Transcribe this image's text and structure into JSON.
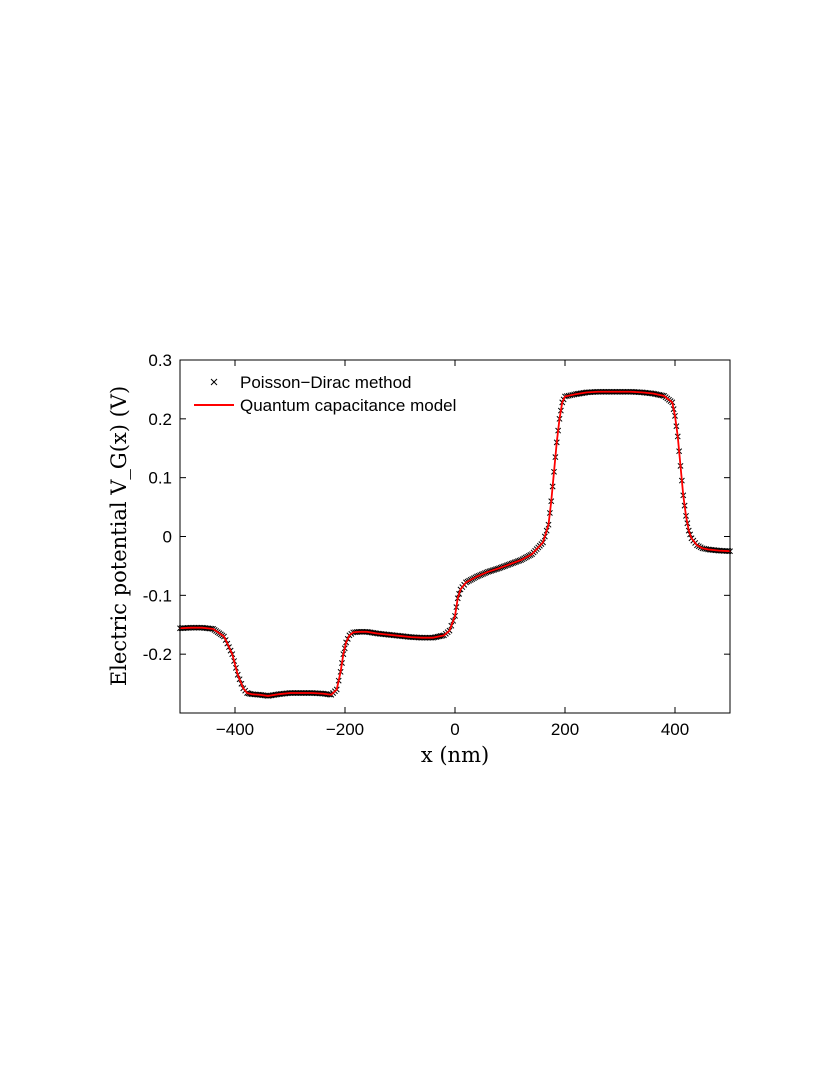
{
  "chart_data": {
    "type": "line",
    "title": "",
    "xlabel": "x (nm)",
    "ylabel": "Electric potential V_G(x) (V)",
    "xlim": [
      -500,
      500
    ],
    "ylim": [
      -0.3,
      0.3
    ],
    "xticks": [
      -400,
      -200,
      0,
      200,
      400
    ],
    "yticks": [
      -0.2,
      -0.1,
      0,
      0.1,
      0.2,
      0.3
    ],
    "xtick_labels": [
      "−400",
      "−200",
      "0",
      "200",
      "400"
    ],
    "ytick_labels": [
      "-0.2",
      "-0.1",
      "0",
      "0.1",
      "0.2",
      "0.3"
    ],
    "grid": false,
    "legend_position": "top-left",
    "series": [
      {
        "name": "Poisson−Dirac method",
        "style": "markers",
        "marker": "x",
        "color": "#000000",
        "x": [
          -500,
          -480,
          -460,
          -440,
          -420,
          -405,
          -395,
          -385,
          -378,
          -370,
          -355,
          -340,
          -320,
          -300,
          -280,
          -260,
          -240,
          -225,
          -215,
          -208,
          -203,
          -198,
          -192,
          -185,
          -175,
          -160,
          -140,
          -120,
          -100,
          -80,
          -60,
          -40,
          -20,
          -10,
          0,
          5,
          10,
          20,
          40,
          60,
          80,
          100,
          120,
          140,
          160,
          170,
          175,
          180,
          185,
          190,
          195,
          200,
          210,
          220,
          240,
          260,
          280,
          300,
          320,
          340,
          360,
          380,
          395,
          400,
          405,
          410,
          415,
          420,
          425,
          430,
          440,
          450,
          460,
          480,
          500
        ],
        "y": [
          -0.156,
          -0.155,
          -0.155,
          -0.157,
          -0.17,
          -0.2,
          -0.235,
          -0.258,
          -0.266,
          -0.268,
          -0.269,
          -0.271,
          -0.268,
          -0.266,
          -0.266,
          -0.266,
          -0.267,
          -0.269,
          -0.26,
          -0.23,
          -0.2,
          -0.18,
          -0.168,
          -0.163,
          -0.162,
          -0.162,
          -0.165,
          -0.167,
          -0.169,
          -0.171,
          -0.172,
          -0.172,
          -0.168,
          -0.16,
          -0.135,
          -0.105,
          -0.09,
          -0.078,
          -0.068,
          -0.06,
          -0.054,
          -0.047,
          -0.04,
          -0.03,
          -0.01,
          0.02,
          0.06,
          0.11,
          0.16,
          0.2,
          0.228,
          0.238,
          0.24,
          0.242,
          0.245,
          0.246,
          0.246,
          0.246,
          0.246,
          0.245,
          0.243,
          0.239,
          0.228,
          0.205,
          0.17,
          0.12,
          0.07,
          0.035,
          0.01,
          -0.003,
          -0.015,
          -0.02,
          -0.022,
          -0.024,
          -0.025
        ]
      },
      {
        "name": "Quantum capacitance model",
        "style": "line",
        "color": "#ff0000",
        "x": [
          -500,
          -480,
          -460,
          -440,
          -420,
          -405,
          -395,
          -385,
          -378,
          -370,
          -355,
          -340,
          -320,
          -300,
          -280,
          -260,
          -240,
          -225,
          -215,
          -208,
          -203,
          -198,
          -192,
          -185,
          -175,
          -160,
          -140,
          -120,
          -100,
          -80,
          -60,
          -40,
          -20,
          -10,
          0,
          5,
          10,
          20,
          40,
          60,
          80,
          100,
          120,
          140,
          160,
          170,
          175,
          180,
          185,
          190,
          195,
          200,
          210,
          220,
          240,
          260,
          280,
          300,
          320,
          340,
          360,
          380,
          395,
          400,
          405,
          410,
          415,
          420,
          425,
          430,
          440,
          450,
          460,
          480,
          500
        ],
        "y": [
          -0.156,
          -0.155,
          -0.155,
          -0.157,
          -0.17,
          -0.2,
          -0.235,
          -0.258,
          -0.266,
          -0.268,
          -0.269,
          -0.271,
          -0.268,
          -0.266,
          -0.266,
          -0.266,
          -0.267,
          -0.269,
          -0.26,
          -0.23,
          -0.2,
          -0.18,
          -0.168,
          -0.163,
          -0.162,
          -0.162,
          -0.165,
          -0.167,
          -0.169,
          -0.171,
          -0.172,
          -0.172,
          -0.168,
          -0.16,
          -0.135,
          -0.105,
          -0.09,
          -0.078,
          -0.068,
          -0.06,
          -0.054,
          -0.047,
          -0.04,
          -0.03,
          -0.01,
          0.02,
          0.06,
          0.11,
          0.16,
          0.2,
          0.228,
          0.238,
          0.24,
          0.242,
          0.245,
          0.246,
          0.246,
          0.246,
          0.246,
          0.245,
          0.243,
          0.239,
          0.228,
          0.205,
          0.17,
          0.12,
          0.07,
          0.035,
          0.01,
          -0.003,
          -0.015,
          -0.02,
          -0.022,
          -0.024,
          -0.025
        ]
      }
    ]
  }
}
